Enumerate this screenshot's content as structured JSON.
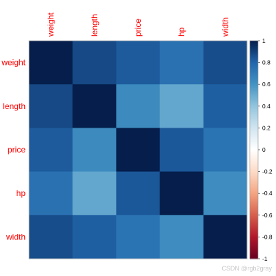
{
  "chart_data": {
    "type": "heatmap",
    "title": "",
    "variables": [
      "weight",
      "length",
      "price",
      "hp",
      "width"
    ],
    "row_labels": [
      "weight",
      "length",
      "price",
      "hp",
      "width"
    ],
    "col_labels": [
      "weight",
      "length",
      "price",
      "hp",
      "width"
    ],
    "matrix": [
      [
        1.0,
        0.88,
        0.83,
        0.75,
        0.87
      ],
      [
        0.88,
        1.0,
        0.64,
        0.52,
        0.82
      ],
      [
        0.83,
        0.64,
        1.0,
        0.84,
        0.74
      ],
      [
        0.75,
        0.52,
        0.84,
        1.0,
        0.63
      ],
      [
        0.87,
        0.82,
        0.74,
        0.63,
        1.0
      ]
    ],
    "colorbar": {
      "range": [
        -1,
        1
      ],
      "ticks": [
        "1",
        "0.8",
        "0.6",
        "0.4",
        "0.2",
        "0",
        "-0.2",
        "-0.4",
        "-0.6",
        "-0.8",
        "-1"
      ]
    },
    "label_color": "#ff0000",
    "grid": false,
    "legend": "right"
  },
  "watermark": "CSDN @rgb2gray"
}
